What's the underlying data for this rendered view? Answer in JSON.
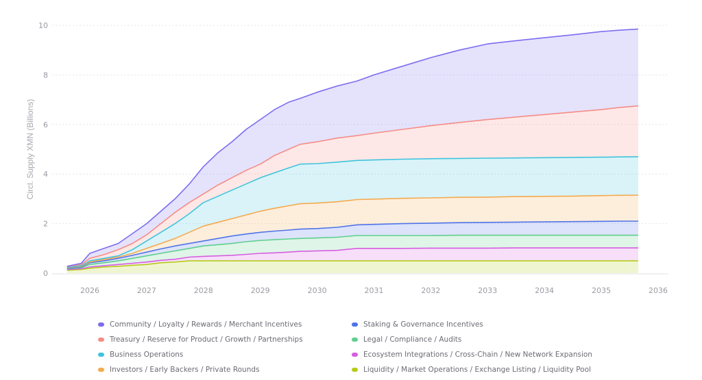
{
  "chart_data": {
    "type": "area",
    "stacked": true,
    "title": "",
    "xlabel": "",
    "ylabel": "Circl. Supply XMN (Billions)",
    "xlim": [
      2025.3,
      2036.1
    ],
    "ylim": [
      0,
      10
    ],
    "grid": true,
    "legend_position": "bottom",
    "x_ticks": [
      "2026",
      "2027",
      "2028",
      "2029",
      "2030",
      "2031",
      "2032",
      "2033",
      "2034",
      "2035",
      "2036"
    ],
    "y_ticks": [
      "0",
      "2",
      "4",
      "6",
      "8",
      "10"
    ],
    "x": [
      2025.6,
      2025.85,
      2026.0,
      2026.25,
      2026.5,
      2026.75,
      2027.0,
      2027.25,
      2027.5,
      2027.75,
      2028.0,
      2028.25,
      2028.5,
      2028.75,
      2029.0,
      2029.25,
      2029.5,
      2029.7,
      2030.0,
      2030.35,
      2030.7,
      2031.0,
      2031.5,
      2032.0,
      2032.5,
      2033.0,
      2033.5,
      2034.0,
      2034.5,
      2035.0,
      2035.3,
      2035.65
    ],
    "series_cumulative_note": "values are cumulative stacked tops in billions, bottom series first",
    "series": [
      {
        "name": "Liquidity / Market Operations / Exchange Listing / Liquidity Pool",
        "color": "#b5cc18",
        "values": [
          0.12,
          0.15,
          0.2,
          0.25,
          0.28,
          0.32,
          0.35,
          0.42,
          0.45,
          0.5,
          0.5,
          0.5,
          0.5,
          0.5,
          0.5,
          0.5,
          0.5,
          0.5,
          0.5,
          0.5,
          0.5,
          0.5,
          0.5,
          0.5,
          0.5,
          0.5,
          0.5,
          0.5,
          0.5,
          0.5,
          0.5,
          0.5
        ]
      },
      {
        "name": "Ecosystem Integrations / Cross-Chain / New Network Expansion",
        "color": "#d65ee0",
        "values": [
          0.15,
          0.18,
          0.25,
          0.3,
          0.35,
          0.4,
          0.45,
          0.52,
          0.56,
          0.65,
          0.68,
          0.7,
          0.72,
          0.76,
          0.8,
          0.82,
          0.85,
          0.88,
          0.9,
          0.92,
          1.0,
          1.0,
          1.0,
          1.01,
          1.01,
          1.01,
          1.02,
          1.02,
          1.02,
          1.02,
          1.02,
          1.02
        ]
      },
      {
        "name": "Legal / Compliance / Audits",
        "color": "#5fcf8e",
        "values": [
          0.18,
          0.22,
          0.35,
          0.42,
          0.5,
          0.6,
          0.7,
          0.8,
          0.9,
          1.0,
          1.1,
          1.15,
          1.2,
          1.27,
          1.32,
          1.35,
          1.38,
          1.4,
          1.42,
          1.45,
          1.52,
          1.52,
          1.52,
          1.52,
          1.53,
          1.53,
          1.53,
          1.53,
          1.53,
          1.53,
          1.53,
          1.53
        ]
      },
      {
        "name": "Staking & Governance Incentives",
        "color": "#4f73e8",
        "values": [
          0.2,
          0.25,
          0.42,
          0.5,
          0.6,
          0.72,
          0.85,
          0.98,
          1.1,
          1.2,
          1.3,
          1.4,
          1.5,
          1.58,
          1.65,
          1.7,
          1.74,
          1.78,
          1.8,
          1.85,
          1.95,
          1.97,
          2.0,
          2.02,
          2.04,
          2.05,
          2.06,
          2.07,
          2.08,
          2.09,
          2.1,
          2.1
        ]
      },
      {
        "name": "Investors / Early Backers / Private Rounds",
        "color": "#f5a94e",
        "values": [
          0.22,
          0.28,
          0.45,
          0.55,
          0.65,
          0.8,
          1.0,
          1.2,
          1.4,
          1.65,
          1.9,
          2.05,
          2.2,
          2.35,
          2.5,
          2.62,
          2.72,
          2.8,
          2.83,
          2.88,
          2.97,
          2.99,
          3.02,
          3.04,
          3.06,
          3.07,
          3.09,
          3.1,
          3.11,
          3.13,
          3.14,
          3.15
        ]
      },
      {
        "name": "Business Operations",
        "color": "#3fc3dc",
        "values": [
          0.24,
          0.3,
          0.5,
          0.6,
          0.7,
          0.95,
          1.3,
          1.65,
          2.0,
          2.4,
          2.85,
          3.1,
          3.35,
          3.6,
          3.85,
          4.05,
          4.25,
          4.4,
          4.42,
          4.48,
          4.55,
          4.57,
          4.6,
          4.62,
          4.63,
          4.64,
          4.65,
          4.66,
          4.67,
          4.68,
          4.69,
          4.7
        ]
      },
      {
        "name": "Treasury / Reserve for Product / Growth / Partnerships",
        "color": "#f58c86",
        "values": [
          0.27,
          0.35,
          0.6,
          0.75,
          0.95,
          1.2,
          1.55,
          2.0,
          2.45,
          2.85,
          3.2,
          3.55,
          3.85,
          4.15,
          4.4,
          4.75,
          5.0,
          5.2,
          5.3,
          5.45,
          5.55,
          5.65,
          5.8,
          5.95,
          6.08,
          6.2,
          6.3,
          6.4,
          6.5,
          6.6,
          6.68,
          6.75
        ]
      },
      {
        "name": "Community / Loyalty / Rewards / Merchant Incentives",
        "color": "#7b6cf0",
        "values": [
          0.28,
          0.4,
          0.8,
          1.0,
          1.2,
          1.6,
          2.0,
          2.5,
          3.0,
          3.6,
          4.3,
          4.85,
          5.3,
          5.8,
          6.2,
          6.6,
          6.9,
          7.05,
          7.3,
          7.55,
          7.75,
          8.0,
          8.35,
          8.7,
          9.0,
          9.25,
          9.38,
          9.5,
          9.62,
          9.75,
          9.8,
          9.85
        ]
      }
    ],
    "legend": {
      "left_column": [
        "Community / Loyalty / Rewards / Merchant Incentives",
        "Treasury / Reserve for Product / Growth / Partnerships",
        "Business Operations",
        "Investors / Early Backers / Private Rounds"
      ],
      "right_column": [
        "Staking & Governance Incentives",
        "Legal / Compliance / Audits",
        "Ecosystem Integrations / Cross-Chain / New Network Expansion",
        "Liquidity / Market Operations / Exchange Listing / Liquidity Pool"
      ]
    }
  },
  "legend_items": [
    {
      "label": "Community / Loyalty / Rewards / Merchant Incentives",
      "color": "#7b6cf0"
    },
    {
      "label": "Staking & Governance Incentives",
      "color": "#4f73e8"
    },
    {
      "label": "Treasury / Reserve for Product / Growth / Partnerships",
      "color": "#f58c86"
    },
    {
      "label": "Legal / Compliance / Audits",
      "color": "#5fcf8e"
    },
    {
      "label": "Business Operations",
      "color": "#3fc3dc"
    },
    {
      "label": "Ecosystem Integrations / Cross-Chain / New Network Expansion",
      "color": "#d65ee0"
    },
    {
      "label": "Investors / Early Backers / Private Rounds",
      "color": "#f5a94e"
    },
    {
      "label": "Liquidity / Market Operations / Exchange Listing / Liquidity Pool",
      "color": "#b5cc18"
    }
  ]
}
